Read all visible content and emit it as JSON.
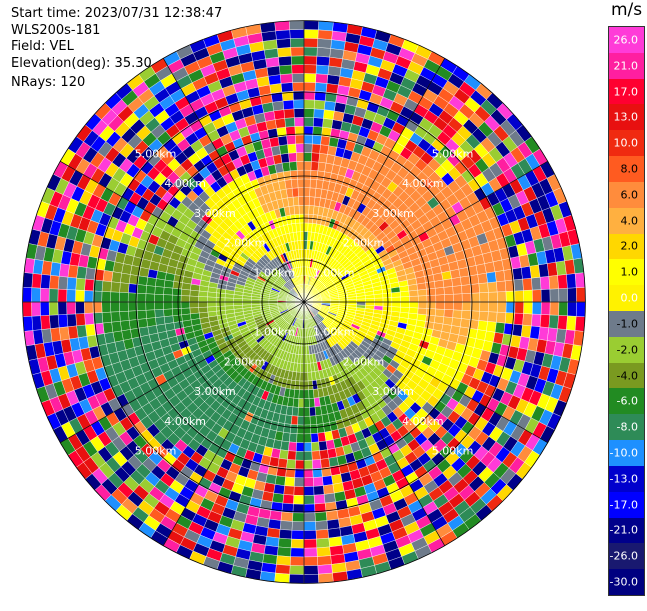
{
  "info": {
    "start_time": "Start time: 2023/07/31 12:38:47",
    "instrument": "WLS200s-181",
    "field": "Field: VEL",
    "elevation": "Elevation(deg): 35.30",
    "nrays": "NRays: 120"
  },
  "colorbar": {
    "unit": "m/s",
    "ticks": [
      "26.0",
      "21.0",
      "17.0",
      "13.0",
      "10.0",
      "8.0",
      "6.0",
      "4.0",
      "2.0",
      "1.0",
      "0.0",
      "-1.0",
      "-2.0",
      "-4.0",
      "-6.0",
      "-8.0",
      "-10.0",
      "-13.0",
      "-17.0",
      "-21.0",
      "-26.0",
      "-30.0"
    ],
    "colors": [
      "#ff3bd8",
      "#ff1fa0",
      "#ff0030",
      "#e81010",
      "#f02a10",
      "#ff5b20",
      "#ff8c3c",
      "#ffb040",
      "#ffd700",
      "#ffff00",
      "#fff200",
      "#6e7b8b",
      "#9acd32",
      "#7a9a20",
      "#228b22",
      "#2e8b57",
      "#1e90ff",
      "#0000cd",
      "#0000ff",
      "#00008b",
      "#191970",
      "#000080"
    ]
  },
  "chart_data": {
    "type": "ppi-polar",
    "field": "VEL",
    "units": "m/s",
    "n_rays": 120,
    "elevation_deg": 35.3,
    "range_rings_km": [
      1.0,
      2.0,
      3.0,
      4.0,
      5.0
    ],
    "ring_labels": [
      "1.00km",
      "2.00km",
      "3.00km",
      "4.00km",
      "5.00km"
    ],
    "max_range_km": 6.7,
    "color_scale_ms": [
      -30,
      -26,
      -21,
      -17,
      -13,
      -10,
      -8,
      -6,
      -4,
      -2,
      -1,
      0,
      1,
      2,
      4,
      6,
      8,
      10,
      13,
      17,
      21,
      26
    ]
  }
}
